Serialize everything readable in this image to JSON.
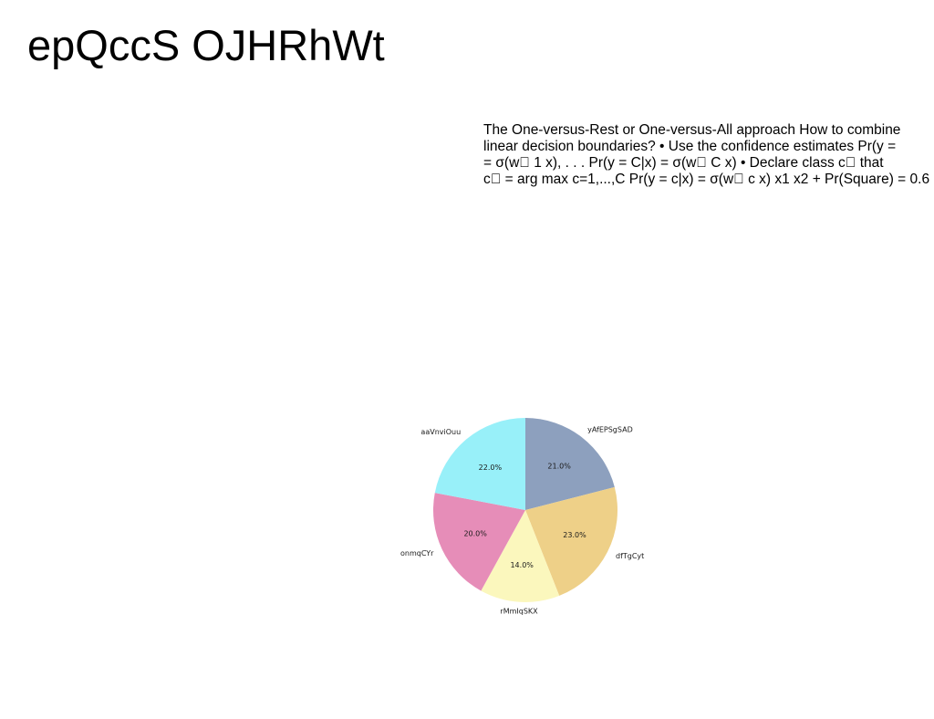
{
  "title": "epQccS OJHRhWt",
  "body_lines": [
    "The One-versus-Rest or One-versus-All approach How to combine",
    "linear decision boundaries? • Use the confidence estimates Pr(y =",
    "= σ(w\u0000 1 x), . . . Pr(y = C|x) = σ(w\u0000 C x) • Declare class c\u0000 that",
    "c\u0000 = arg max c=1,...,C Pr(y = c|x) = σ(w\u0000 c x) x1 x2 + Pr(Square) = 0.6"
  ],
  "chart_data": {
    "type": "pie",
    "title": "",
    "start_angle_deg": 90,
    "direction": "clockwise",
    "slices": [
      {
        "label": "yAfEPSgSAD",
        "value": 21.0,
        "pct_label": "21.0%",
        "color": "#8da0be"
      },
      {
        "label": "dfTgCyt",
        "value": 23.0,
        "pct_label": "23.0%",
        "color": "#eed088"
      },
      {
        "label": "rMmIqSKX",
        "value": 14.0,
        "pct_label": "14.0%",
        "color": "#fbf7bd"
      },
      {
        "label": "onmqCYr",
        "value": 20.0,
        "pct_label": "20.0%",
        "color": "#e68db8"
      },
      {
        "label": "aaVnviOuu",
        "value": 22.0,
        "pct_label": "22.0%",
        "color": "#98f0f9"
      }
    ]
  }
}
